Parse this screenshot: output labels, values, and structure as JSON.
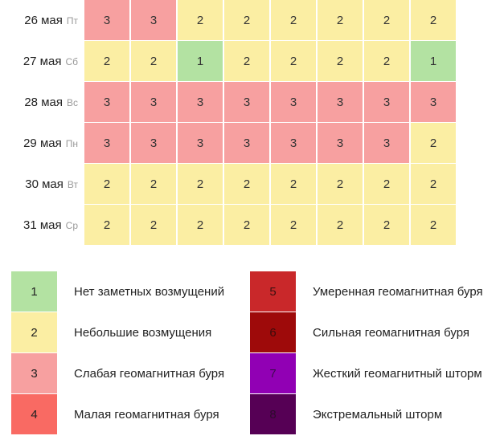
{
  "forecast": [
    {
      "date": "26 мая",
      "dow": "Пт",
      "values": [
        3,
        3,
        2,
        2,
        2,
        2,
        2,
        2
      ]
    },
    {
      "date": "27 мая",
      "dow": "Сб",
      "values": [
        2,
        2,
        1,
        2,
        2,
        2,
        2,
        1
      ]
    },
    {
      "date": "28 мая",
      "dow": "Вс",
      "values": [
        3,
        3,
        3,
        3,
        3,
        3,
        3,
        3
      ]
    },
    {
      "date": "29 мая",
      "dow": "Пн",
      "values": [
        3,
        3,
        3,
        3,
        3,
        3,
        3,
        2
      ]
    },
    {
      "date": "30 мая",
      "dow": "Вт",
      "values": [
        2,
        2,
        2,
        2,
        2,
        2,
        2,
        2
      ]
    },
    {
      "date": "31 мая",
      "dow": "Ср",
      "values": [
        2,
        2,
        2,
        2,
        2,
        2,
        2,
        2
      ]
    }
  ],
  "legend": [
    {
      "level": "1",
      "label": "Нет заметных возмущений",
      "color": "#b3e2a2"
    },
    {
      "level": "2",
      "label": "Небольшие возмущения",
      "color": "#fbeea3"
    },
    {
      "level": "3",
      "label": "Слабая геомагнитная буря",
      "color": "#f7a0a0"
    },
    {
      "level": "4",
      "label": "Малая геомагнитная буря",
      "color": "#f96a63"
    },
    {
      "level": "5",
      "label": "Умеренная геомагнитная буря",
      "color": "#c9282a"
    },
    {
      "level": "6",
      "label": "Сильная геомагнитная буря",
      "color": "#9e0a0a"
    },
    {
      "level": "7",
      "label": "Жесткий геомагнитный шторм",
      "color": "#9100b4"
    },
    {
      "level": "8",
      "label": "Экстремальный шторм",
      "color": "#560055"
    }
  ]
}
